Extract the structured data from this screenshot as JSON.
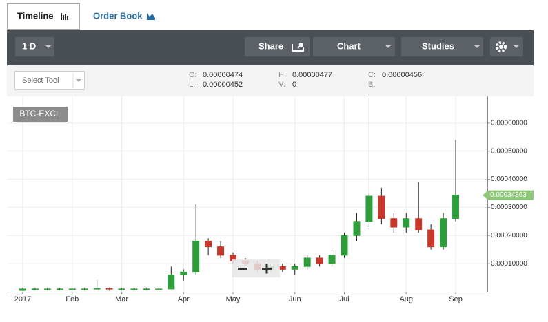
{
  "ui": {
    "tabs": [
      "Timeline",
      "Order Book"
    ],
    "toolbar": {
      "interval": "1 D",
      "share": "Share",
      "chart": "Chart",
      "studies": "Studies"
    },
    "select_tool": "Select Tool",
    "ohlc": [
      {
        "label": "O:",
        "value": "0.00000474"
      },
      {
        "label": "L:",
        "value": "0.00000452"
      },
      {
        "label": "H:",
        "value": "0.00000477"
      },
      {
        "label": "V:",
        "value": "0"
      },
      {
        "label": "C:",
        "value": "0.00000456"
      },
      {
        "label": "B:"
      }
    ]
  },
  "chart_data": {
    "type": "candlestick",
    "symbol": "BTC-EXCL",
    "categories": [
      "2017",
      null,
      null,
      null,
      "Feb",
      null,
      null,
      null,
      "Mar",
      null,
      null,
      null,
      null,
      "Apr",
      null,
      null,
      null,
      "May",
      null,
      null,
      null,
      null,
      "Jun",
      null,
      null,
      null,
      "Jul",
      null,
      null,
      null,
      null,
      "Aug",
      null,
      null,
      null,
      "Sep"
    ],
    "open": [
      4.7e-06,
      1e-05,
      1e-05,
      1e-05,
      1e-05,
      1e-05,
      1e-05,
      1.2e-05,
      1e-05,
      1e-05,
      1e-05,
      1e-05,
      1e-05,
      6e-05,
      7e-05,
      0.00018,
      0.00016,
      0.00013,
      0.00011,
      0.0001,
      8e-05,
      9e-05,
      8e-05,
      9e-05,
      0.00012,
      0.0001,
      0.00013,
      0.0002,
      0.00025,
      0.00034,
      0.00026,
      0.00023,
      0.00026,
      0.00022,
      0.00016,
      0.00026
    ],
    "high": [
      1.5e-05,
      1.5e-05,
      1.5e-05,
      1.5e-05,
      1.5e-05,
      1.5e-05,
      4e-05,
      1.5e-05,
      1.5e-05,
      1.5e-05,
      1.5e-05,
      1.5e-05,
      9e-05,
      8e-05,
      0.00031,
      0.00019,
      0.00018,
      0.00014,
      0.00012,
      0.00011,
      0.0001,
      0.0001,
      0.0001,
      0.00013,
      0.00013,
      0.00014,
      0.00021,
      0.00028,
      0.00069,
      0.00037,
      0.00028,
      0.00028,
      0.00039,
      0.00024,
      0.00028,
      0.00054
    ],
    "low": [
      4.5e-06,
      4.5e-06,
      4.5e-06,
      4.5e-06,
      4.5e-06,
      4.5e-06,
      8e-06,
      4.5e-06,
      4.5e-06,
      4.5e-06,
      4.5e-06,
      4.5e-06,
      1e-05,
      4e-05,
      6e-05,
      0.00013,
      0.00012,
      0.0001,
      9e-05,
      7e-05,
      7e-05,
      7e-05,
      6e-05,
      8e-05,
      9e-05,
      9e-05,
      0.00012,
      0.00018,
      0.00023,
      0.00024,
      0.00021,
      0.00021,
      0.00021,
      0.00015,
      0.00015,
      0.00025
    ],
    "close": [
      1e-05,
      1e-05,
      1e-05,
      1e-05,
      1e-05,
      1e-05,
      1.2e-05,
      1e-05,
      1e-05,
      1e-05,
      1e-05,
      1e-05,
      6e-05,
      7e-05,
      0.00018,
      0.00016,
      0.00013,
      0.00011,
      0.0001,
      8e-05,
      9e-05,
      8e-05,
      9e-05,
      0.00012,
      0.0001,
      0.00013,
      0.0002,
      0.00025,
      0.00034,
      0.00026,
      0.00023,
      0.00026,
      0.00022,
      0.00016,
      0.00026,
      0.00034363
    ],
    "up_color": "#2e9e3a",
    "down_color": "#c7382b",
    "last_price": 0.00034363,
    "last_price_color": "#8fc77b",
    "ylim": [
      0,
      0.000695
    ],
    "yticks": [
      {
        "value": 0.0001,
        "label": "0.00010000"
      },
      {
        "value": 0.0002,
        "label": "0.00020000"
      },
      {
        "value": 0.0003,
        "label": "0.00030000"
      },
      {
        "value": 0.0004,
        "label": "0.00040000"
      },
      {
        "value": 0.0005,
        "label": "0.00050000"
      },
      {
        "value": 0.0006,
        "label": "0.00060000"
      }
    ],
    "grid": true
  }
}
